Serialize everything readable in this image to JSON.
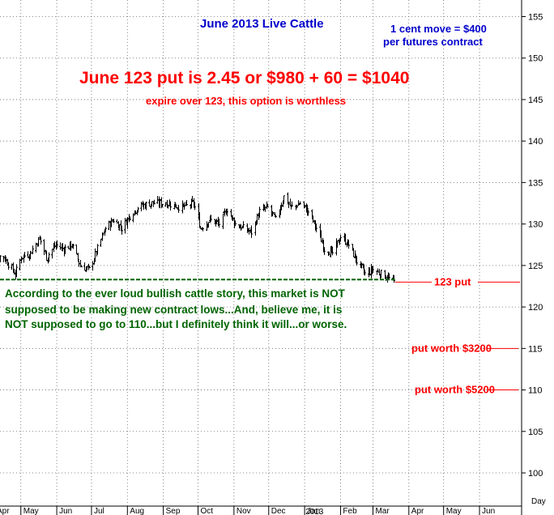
{
  "chart_data": {
    "type": "ohlc",
    "title": "June 2013 Live Cattle",
    "ylim": [
      96,
      157
    ],
    "y_ticks": [
      100,
      105,
      110,
      115,
      120,
      125,
      130,
      135,
      140,
      145,
      150,
      155
    ],
    "x_axis_unit_label": "Day",
    "x_month_labels": [
      "Apr",
      "May",
      "Jun",
      "Jul",
      "Aug",
      "Sep",
      "Oct",
      "Nov",
      "Dec",
      "Jan",
      "Feb",
      "Mar",
      "Apr",
      "May",
      "Jun"
    ],
    "x_year_label": "2013",
    "grid": true,
    "approx_close_path": [
      {
        "date": "2012-04-02",
        "close": 126.5
      },
      {
        "date": "2012-04-16",
        "close": 126.0
      },
      {
        "date": "2012-04-26",
        "close": 124.0
      },
      {
        "date": "2012-05-01",
        "close": 126.0
      },
      {
        "date": "2012-05-09",
        "close": 126.5
      },
      {
        "date": "2012-05-17",
        "close": 128.3
      },
      {
        "date": "2012-05-23",
        "close": 126.0
      },
      {
        "date": "2012-05-31",
        "close": 127.5
      },
      {
        "date": "2012-06-07",
        "close": 127.0
      },
      {
        "date": "2012-06-14",
        "close": 127.5
      },
      {
        "date": "2012-06-21",
        "close": 125.0
      },
      {
        "date": "2012-06-29",
        "close": 124.5
      },
      {
        "date": "2012-07-06",
        "close": 127.0
      },
      {
        "date": "2012-07-13",
        "close": 129.5
      },
      {
        "date": "2012-07-20",
        "close": 130.5
      },
      {
        "date": "2012-07-27",
        "close": 129.5
      },
      {
        "date": "2012-08-03",
        "close": 131.0
      },
      {
        "date": "2012-08-10",
        "close": 132.0
      },
      {
        "date": "2012-08-20",
        "close": 132.5
      },
      {
        "date": "2012-09-04",
        "close": 132.5
      },
      {
        "date": "2012-09-17",
        "close": 132.0
      },
      {
        "date": "2012-09-27",
        "close": 132.5
      },
      {
        "date": "2012-10-03",
        "close": 129.5
      },
      {
        "date": "2012-10-11",
        "close": 130.5
      },
      {
        "date": "2012-10-19",
        "close": 130.0
      },
      {
        "date": "2012-10-26",
        "close": 131.8
      },
      {
        "date": "2012-11-02",
        "close": 130.0
      },
      {
        "date": "2012-11-09",
        "close": 129.5
      },
      {
        "date": "2012-11-16",
        "close": 129.0
      },
      {
        "date": "2012-11-23",
        "close": 131.5
      },
      {
        "date": "2012-11-30",
        "close": 132.0
      },
      {
        "date": "2012-12-07",
        "close": 130.5
      },
      {
        "date": "2012-12-14",
        "close": 133.3
      },
      {
        "date": "2012-12-20",
        "close": 132.0
      },
      {
        "date": "2012-12-28",
        "close": 132.5
      },
      {
        "date": "2013-01-04",
        "close": 131.5
      },
      {
        "date": "2013-01-11",
        "close": 129.5
      },
      {
        "date": "2013-01-18",
        "close": 127.0
      },
      {
        "date": "2013-01-25",
        "close": 126.5
      },
      {
        "date": "2013-02-01",
        "close": 128.5
      },
      {
        "date": "2013-02-08",
        "close": 127.5
      },
      {
        "date": "2013-02-15",
        "close": 125.5
      },
      {
        "date": "2013-02-22",
        "close": 124.0
      },
      {
        "date": "2013-03-01",
        "close": 124.5
      },
      {
        "date": "2013-03-08",
        "close": 124.0
      },
      {
        "date": "2013-03-14",
        "close": 123.5
      },
      {
        "date": "2013-03-19",
        "close": 123.0
      }
    ],
    "support_line": {
      "value": 123.3,
      "from": "2012-04-01",
      "to": "2013-03-20",
      "color": "#006400"
    },
    "strike_line": {
      "value": 123,
      "label": "123 put"
    },
    "target_lines": [
      {
        "value": 115,
        "label": "put worth $3200"
      },
      {
        "value": 110,
        "label": "put worth $5200"
      }
    ]
  },
  "annotations": {
    "contract_note_line1": "1 cent move = $400",
    "contract_note_line2": "per futures contract",
    "put_price": "June 123 put is 2.45 or $980 + 60 = $1040",
    "expire_note": "expire over 123, this option is worthless",
    "commentary": [
      "According to the ever loud bullish cattle story, this market is NOT",
      "supposed to be making new contract lows...And, believe me, it is",
      "NOT supposed to go to 110...but I definitely think it will...or worse."
    ]
  },
  "colors": {
    "title": "#0000cc",
    "note": "#0000cc",
    "put": "#ff0000",
    "commentary": "#006400",
    "bars": "#000000"
  }
}
